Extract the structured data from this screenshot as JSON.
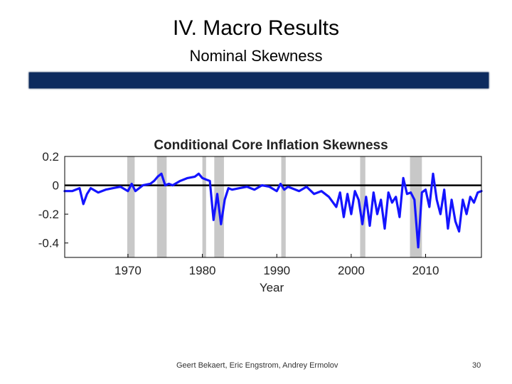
{
  "slide": {
    "title": "IV. Macro Results",
    "subtitle": "Nominal Skewness",
    "footer": "Geert Bekaert, Eric Engstrom, Andrey Ermolov",
    "page_number": "30"
  },
  "colors": {
    "banner": "#0d2b5e",
    "series": "#1414ff",
    "recession": "#c8c8c8",
    "zero_line": "#000000"
  },
  "chart_data": {
    "type": "line",
    "title": "Conditional Core Inflation Skewness",
    "xlabel": "Year",
    "ylabel": "",
    "xlim": [
      1961.5,
      2017.5
    ],
    "ylim": [
      -0.5,
      0.2
    ],
    "xticks": [
      1970,
      1980,
      1990,
      2000,
      2010
    ],
    "yticks": [
      0.2,
      0,
      -0.2,
      -0.4
    ],
    "ytick_labels": [
      "0.2",
      "0",
      "-0.2",
      "-0.4"
    ],
    "grid": false,
    "recessions": [
      [
        1969.9,
        1970.9
      ],
      [
        1973.9,
        1975.2
      ],
      [
        1980.0,
        1980.5
      ],
      [
        1981.6,
        1982.9
      ],
      [
        1990.6,
        1991.2
      ],
      [
        2001.2,
        2001.9
      ],
      [
        2007.9,
        2009.5
      ]
    ],
    "series": [
      {
        "name": "Conditional Core Inflation Skewness",
        "x": [
          1961.5,
          1962.5,
          1963.5,
          1964.0,
          1964.5,
          1965.0,
          1966.0,
          1967.0,
          1968.0,
          1969.0,
          1970.0,
          1970.5,
          1971.0,
          1972.0,
          1973.0,
          1973.5,
          1974.0,
          1974.5,
          1975.0,
          1975.5,
          1976.0,
          1977.0,
          1978.0,
          1979.0,
          1979.5,
          1980.0,
          1980.5,
          1981.0,
          1981.5,
          1982.0,
          1982.5,
          1983.0,
          1983.5,
          1984.0,
          1985.0,
          1986.0,
          1987.0,
          1988.0,
          1989.0,
          1990.0,
          1990.5,
          1991.0,
          1991.5,
          1992.0,
          1993.0,
          1994.0,
          1995.0,
          1996.0,
          1997.0,
          1998.0,
          1998.5,
          1999.0,
          1999.5,
          2000.0,
          2000.5,
          2001.0,
          2001.5,
          2002.0,
          2002.5,
          2003.0,
          2003.5,
          2004.0,
          2004.5,
          2005.0,
          2005.5,
          2006.0,
          2006.5,
          2007.0,
          2007.5,
          2008.0,
          2008.5,
          2009.0,
          2009.5,
          2010.0,
          2010.5,
          2011.0,
          2011.5,
          2012.0,
          2012.5,
          2013.0,
          2013.5,
          2014.0,
          2014.5,
          2015.0,
          2015.5,
          2016.0,
          2016.5,
          2017.0,
          2017.5
        ],
        "values": [
          -0.04,
          -0.04,
          -0.02,
          -0.13,
          -0.06,
          -0.02,
          -0.05,
          -0.03,
          -0.02,
          -0.01,
          -0.04,
          0.01,
          -0.04,
          0.0,
          0.01,
          0.03,
          0.06,
          0.08,
          0.0,
          0.01,
          0.0,
          0.03,
          0.05,
          0.06,
          0.08,
          0.05,
          0.04,
          0.03,
          -0.24,
          -0.06,
          -0.27,
          -0.1,
          -0.02,
          -0.03,
          -0.02,
          -0.01,
          -0.03,
          0.0,
          -0.01,
          -0.04,
          0.01,
          -0.03,
          -0.01,
          -0.02,
          -0.04,
          -0.01,
          -0.06,
          -0.04,
          -0.08,
          -0.15,
          -0.05,
          -0.22,
          -0.06,
          -0.2,
          -0.04,
          -0.1,
          -0.27,
          -0.08,
          -0.28,
          -0.05,
          -0.2,
          -0.1,
          -0.3,
          -0.05,
          -0.12,
          -0.08,
          -0.22,
          0.05,
          -0.06,
          -0.05,
          -0.1,
          -0.43,
          -0.05,
          -0.03,
          -0.15,
          0.08,
          -0.1,
          -0.2,
          -0.03,
          -0.3,
          -0.1,
          -0.25,
          -0.32,
          -0.1,
          -0.2,
          -0.08,
          -0.12,
          -0.05,
          -0.04
        ]
      }
    ]
  }
}
